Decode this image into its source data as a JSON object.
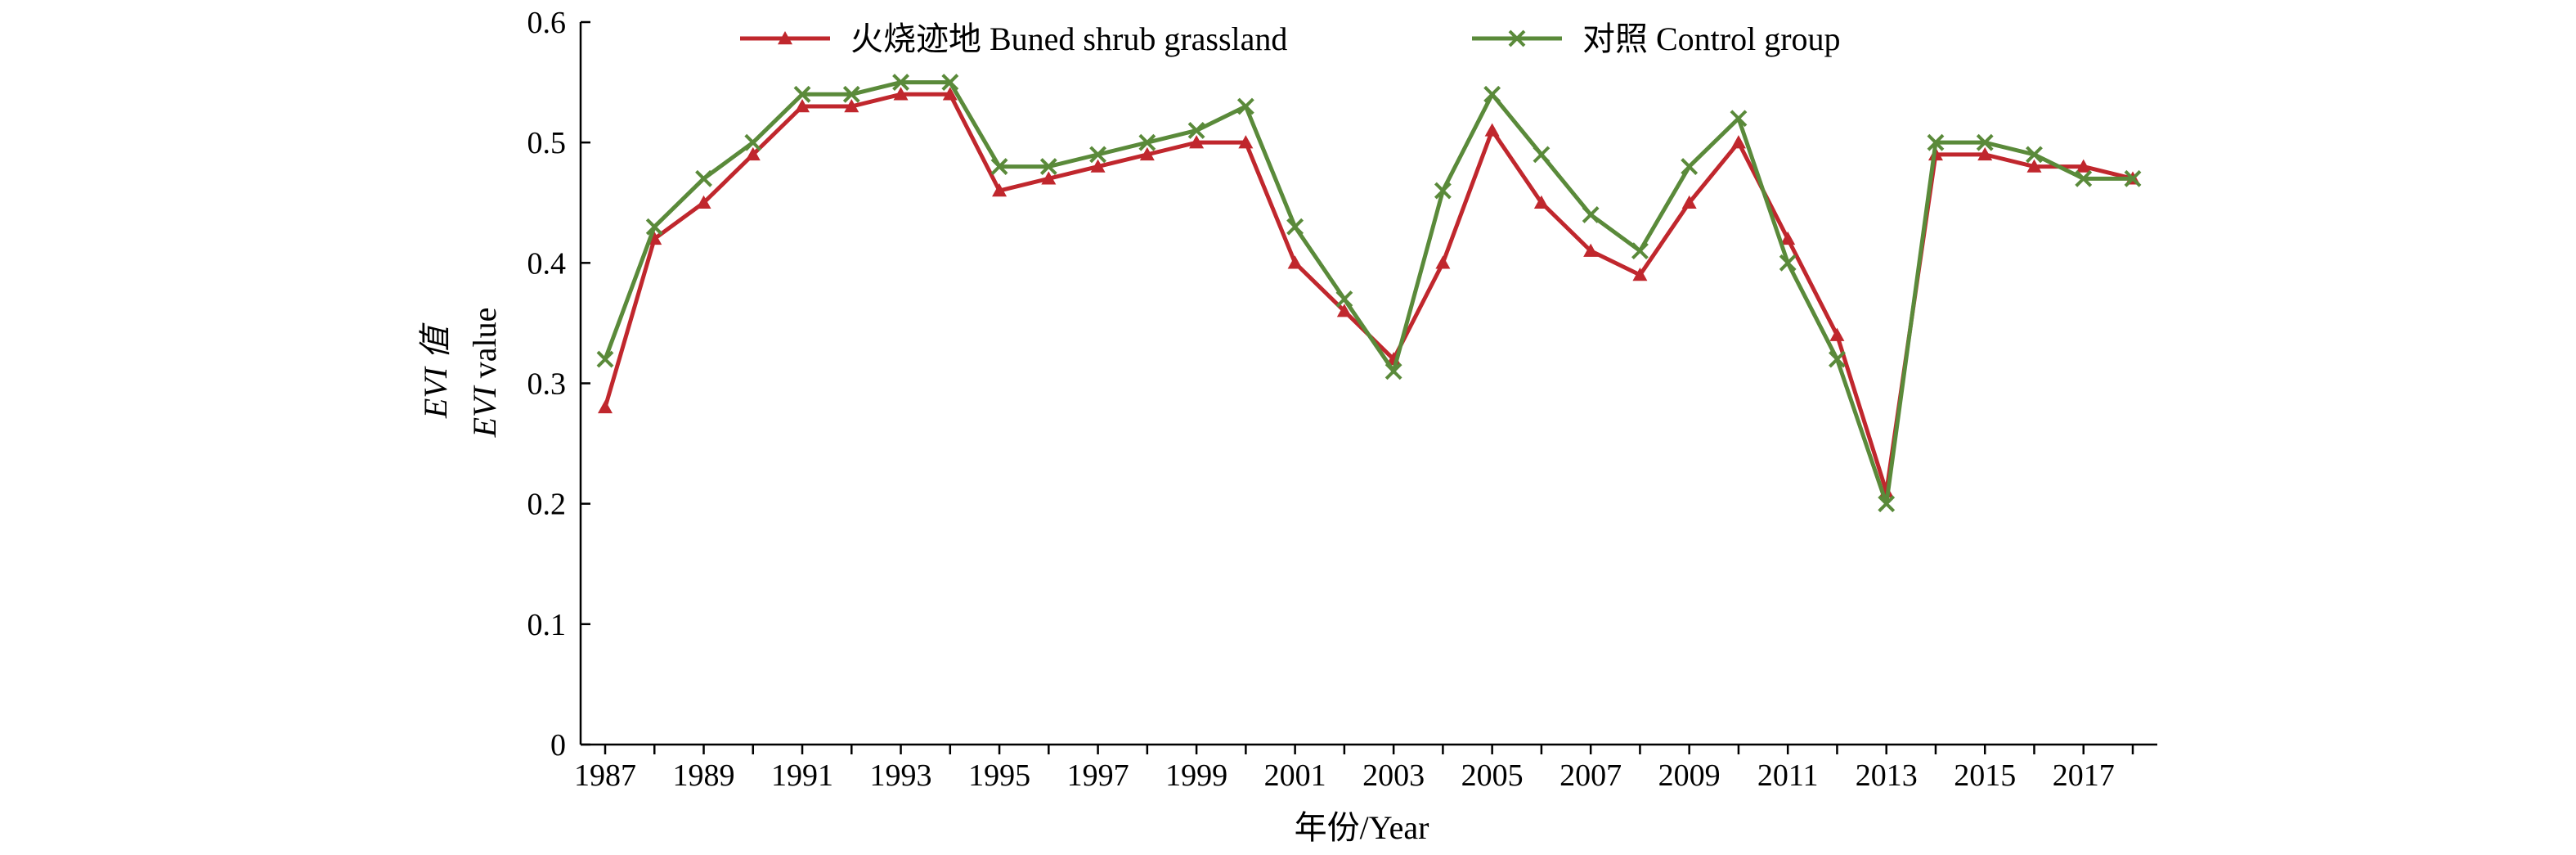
{
  "chart_data": {
    "type": "line",
    "xlabel": "年份/Year",
    "ylabel_line1": "EVI 值",
    "ylabel_line2_italic": "EVI",
    "ylabel_line2_rest": " value",
    "ylim": [
      0,
      0.6
    ],
    "yticks": [
      "0",
      "0.1",
      "0.2",
      "0.3",
      "0.4",
      "0.5",
      "0.6"
    ],
    "xticks": [
      "1987",
      "1989",
      "1991",
      "1993",
      "1995",
      "1997",
      "1999",
      "2001",
      "2003",
      "2005",
      "2007",
      "2009",
      "2011",
      "2013",
      "2015",
      "2017"
    ],
    "x": [
      1987,
      1988,
      1989,
      1990,
      1991,
      1992,
      1993,
      1994,
      1995,
      1996,
      1997,
      1998,
      1999,
      2000,
      2001,
      2002,
      2003,
      2004,
      2005,
      2006,
      2007,
      2008,
      2009,
      2010,
      2011,
      2012,
      2013,
      2014,
      2015,
      2016,
      2017,
      2018
    ],
    "grid": false,
    "legend_position": "top",
    "series": [
      {
        "name": "火烧迹地 Buned shrub grassland",
        "color": "#c0272d",
        "marker": "triangle",
        "values": [
          0.28,
          0.42,
          0.45,
          0.49,
          0.53,
          0.53,
          0.54,
          0.54,
          0.46,
          0.47,
          0.48,
          0.49,
          0.5,
          0.5,
          0.4,
          0.36,
          0.32,
          0.4,
          0.51,
          0.45,
          0.41,
          0.39,
          0.45,
          0.5,
          0.42,
          0.34,
          0.21,
          0.49,
          0.49,
          0.48,
          0.48,
          0.47
        ]
      },
      {
        "name": "对照 Control group",
        "color": "#5a8a3a",
        "marker": "x",
        "values": [
          0.32,
          0.43,
          0.47,
          0.5,
          0.54,
          0.54,
          0.55,
          0.55,
          0.48,
          0.48,
          0.49,
          0.5,
          0.51,
          0.53,
          0.43,
          0.37,
          0.31,
          0.46,
          0.54,
          0.49,
          0.44,
          0.41,
          0.48,
          0.52,
          0.4,
          0.32,
          0.2,
          0.5,
          0.5,
          0.49,
          0.47,
          0.47
        ]
      }
    ]
  }
}
